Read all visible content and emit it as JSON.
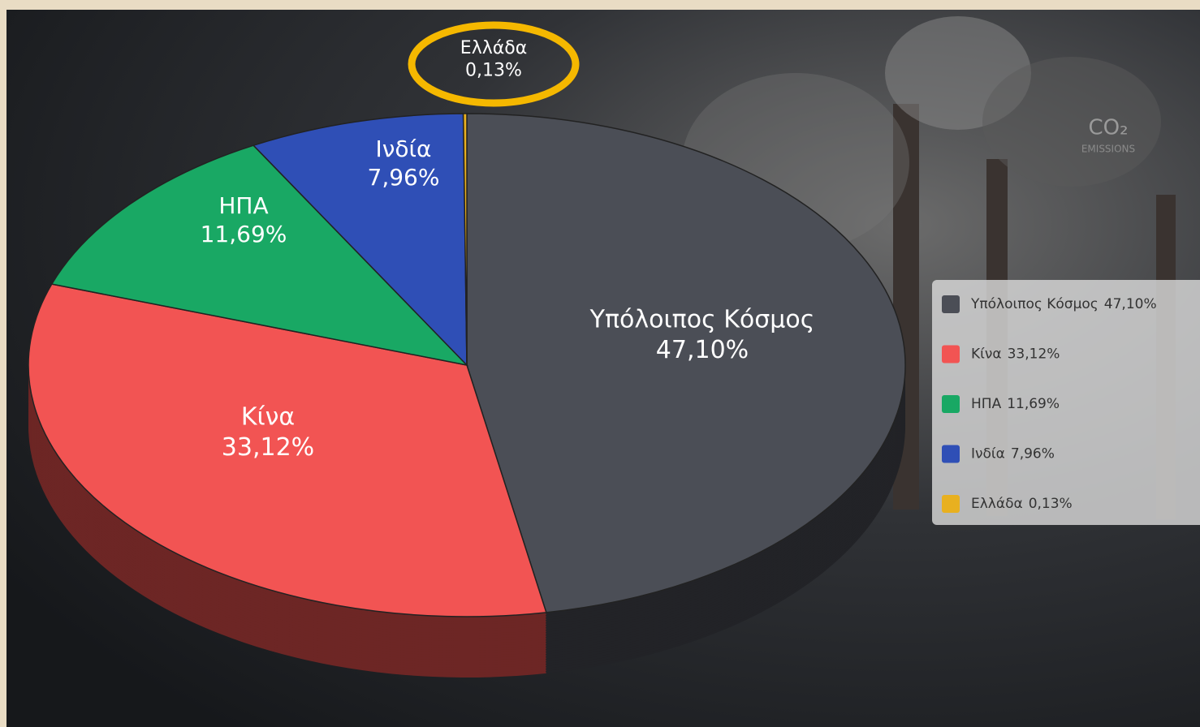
{
  "chart_data": {
    "type": "pie",
    "categories": [
      "Υπόλοιπος Κόσμος",
      "Κίνα",
      "ΗΠΑ",
      "Ινδία",
      "Ελλάδα"
    ],
    "values": [
      47.1,
      33.12,
      11.69,
      7.96,
      0.13
    ],
    "value_labels": [
      "47,10%",
      "33,12%",
      "11,69%",
      "7,96%",
      "0,13%"
    ],
    "colors": [
      "#4b4e56",
      "#f25453",
      "#19a864",
      "#2f4fb6",
      "#e8b020"
    ],
    "legend": "right",
    "annotations": [
      "CO₂",
      "EMISSIONS"
    ]
  }
}
